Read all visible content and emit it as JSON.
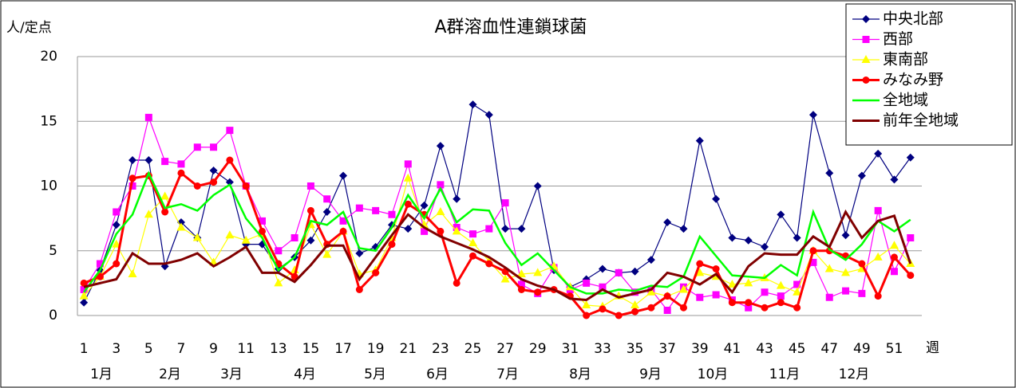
{
  "chart_data": {
    "type": "line",
    "title": "A群溶血性連鎖球菌",
    "y_label": "人/定点",
    "x_label": "週",
    "x": [
      1,
      2,
      3,
      4,
      5,
      6,
      7,
      8,
      9,
      10,
      11,
      12,
      13,
      14,
      15,
      16,
      17,
      18,
      19,
      20,
      21,
      22,
      23,
      24,
      25,
      26,
      27,
      28,
      29,
      30,
      31,
      32,
      33,
      34,
      35,
      36,
      37,
      38,
      39,
      40,
      41,
      42,
      43,
      44,
      45,
      46,
      47,
      48,
      49,
      50,
      51,
      52
    ],
    "xlim": [
      0.6,
      52.7
    ],
    "xticks": [
      1,
      3,
      5,
      7,
      9,
      11,
      13,
      15,
      17,
      19,
      21,
      23,
      25,
      27,
      29,
      31,
      33,
      35,
      37,
      39,
      41,
      43,
      45,
      47,
      49,
      51
    ],
    "ylim": [
      0,
      20
    ],
    "yticks": [
      0,
      5,
      10,
      15,
      20
    ],
    "grid": true,
    "legend": "upper right",
    "months": [
      "1月",
      "2月",
      "3月",
      "4月",
      "5月",
      "6月",
      "7月",
      "8月",
      "9月",
      "10月",
      "11月",
      "12月"
    ],
    "series": [
      {
        "name": "中央北部",
        "color": "#000080",
        "marker": "diamond",
        "values": [
          1,
          3.5,
          7,
          12,
          12,
          3.8,
          7.2,
          6,
          11.2,
          10.3,
          5.5,
          5.5,
          3.6,
          4.5,
          5.8,
          8,
          10.8,
          4.8,
          5.3,
          7,
          6.7,
          8.5,
          13.1,
          9,
          16.3,
          15.5,
          6.7,
          6.7,
          10,
          3.5,
          2.2,
          2.8,
          3.6,
          3.3,
          3.4,
          4.3,
          7.2,
          6.7,
          13.5,
          9,
          6,
          5.8,
          5.3,
          7.8,
          6,
          15.5,
          11,
          6.2,
          10.8,
          12.5,
          10.5,
          12.2
        ]
      },
      {
        "name": "西部",
        "color": "#ff00ff",
        "marker": "square",
        "values": [
          2,
          4,
          8,
          10,
          15.3,
          11.9,
          11.7,
          13,
          13,
          14.3,
          10,
          7.3,
          5,
          6,
          10,
          9,
          7.3,
          8.3,
          8.1,
          7.8,
          11.7,
          6.5,
          10.1,
          6.8,
          6.3,
          6.7,
          8.7,
          2.4,
          1.7,
          3.7,
          2,
          2.5,
          2.2,
          3.3,
          1.8,
          2,
          0.4,
          2.2,
          1.4,
          1.6,
          1.2,
          0.6,
          1.8,
          1.5,
          2.4,
          4.1,
          1.4,
          1.9,
          1.7,
          8.1,
          3.4,
          6
        ]
      },
      {
        "name": "東南部",
        "color": "#ffff00",
        "marker": "triangle",
        "values": [
          1.5,
          3,
          5.5,
          3.2,
          7.8,
          9.2,
          6.8,
          6,
          4.1,
          6.2,
          5.8,
          6.3,
          2.5,
          3.5,
          7,
          4.7,
          6.5,
          3.2,
          3.5,
          6,
          10.6,
          7,
          8,
          6.5,
          5.6,
          4.2,
          2.8,
          3.2,
          3.3,
          3.8,
          2.2,
          0.8,
          0.7,
          1.5,
          0.8,
          1.8,
          1.5,
          2,
          3.3,
          3,
          2.4,
          2.5,
          2.9,
          2.3,
          1.8,
          5,
          3.6,
          3.3,
          3.6,
          4.5,
          5.4,
          4
        ]
      },
      {
        "name": "みなみ野",
        "color": "#ff0000",
        "marker": "circle",
        "values": [
          2.5,
          3,
          4,
          10.6,
          10.8,
          8,
          11,
          10,
          10.3,
          12,
          10,
          6.5,
          4,
          3,
          8.1,
          5.5,
          6.5,
          2,
          3.3,
          5.5,
          8.6,
          7.8,
          6.5,
          2.5,
          4.6,
          4,
          3.4,
          2,
          1.8,
          2,
          1.5,
          0,
          0.5,
          0,
          0.3,
          0.6,
          1.5,
          0.6,
          4,
          3.6,
          1,
          1,
          0.6,
          1,
          0.6,
          5,
          5,
          4.6,
          4,
          1.5,
          4.5,
          3.1
        ]
      },
      {
        "name": "全地域",
        "color": "#00ff00",
        "marker": "none",
        "values": [
          1.8,
          3.5,
          6.3,
          7.8,
          11,
          8.3,
          8.6,
          8.1,
          9.3,
          10.1,
          7.5,
          6,
          3.5,
          4.5,
          7.3,
          7,
          8,
          5.2,
          5,
          6.8,
          9.3,
          7.5,
          9.8,
          7.2,
          8.2,
          8.1,
          5.6,
          3.9,
          4.8,
          3.5,
          2.2,
          1.7,
          1.7,
          2,
          1.9,
          2.3,
          2.2,
          3,
          6.1,
          4.6,
          3.1,
          3,
          2.9,
          3.9,
          3.1,
          8,
          5.1,
          4.3,
          5.5,
          7.3,
          6.5,
          7.4
        ]
      },
      {
        "name": "前年全地域",
        "color": "#800000",
        "marker": "none",
        "values": [
          2.2,
          2.5,
          2.8,
          4.8,
          4,
          4,
          4.3,
          4.8,
          3.8,
          4.5,
          5.3,
          3.3,
          3.3,
          2.6,
          3.9,
          5.4,
          5.4,
          2.8,
          4.5,
          6.2,
          7.8,
          6.8,
          6.1,
          5.6,
          5.1,
          4.5,
          3.7,
          2.8,
          2.3,
          2,
          1.3,
          1.2,
          2,
          1.4,
          1.7,
          2,
          3.3,
          3,
          2.4,
          3.2,
          1.8,
          3.8,
          4.8,
          4.7,
          4.7,
          6.1,
          5.3,
          8,
          6,
          7.3,
          7.7,
          4
        ]
      }
    ]
  }
}
